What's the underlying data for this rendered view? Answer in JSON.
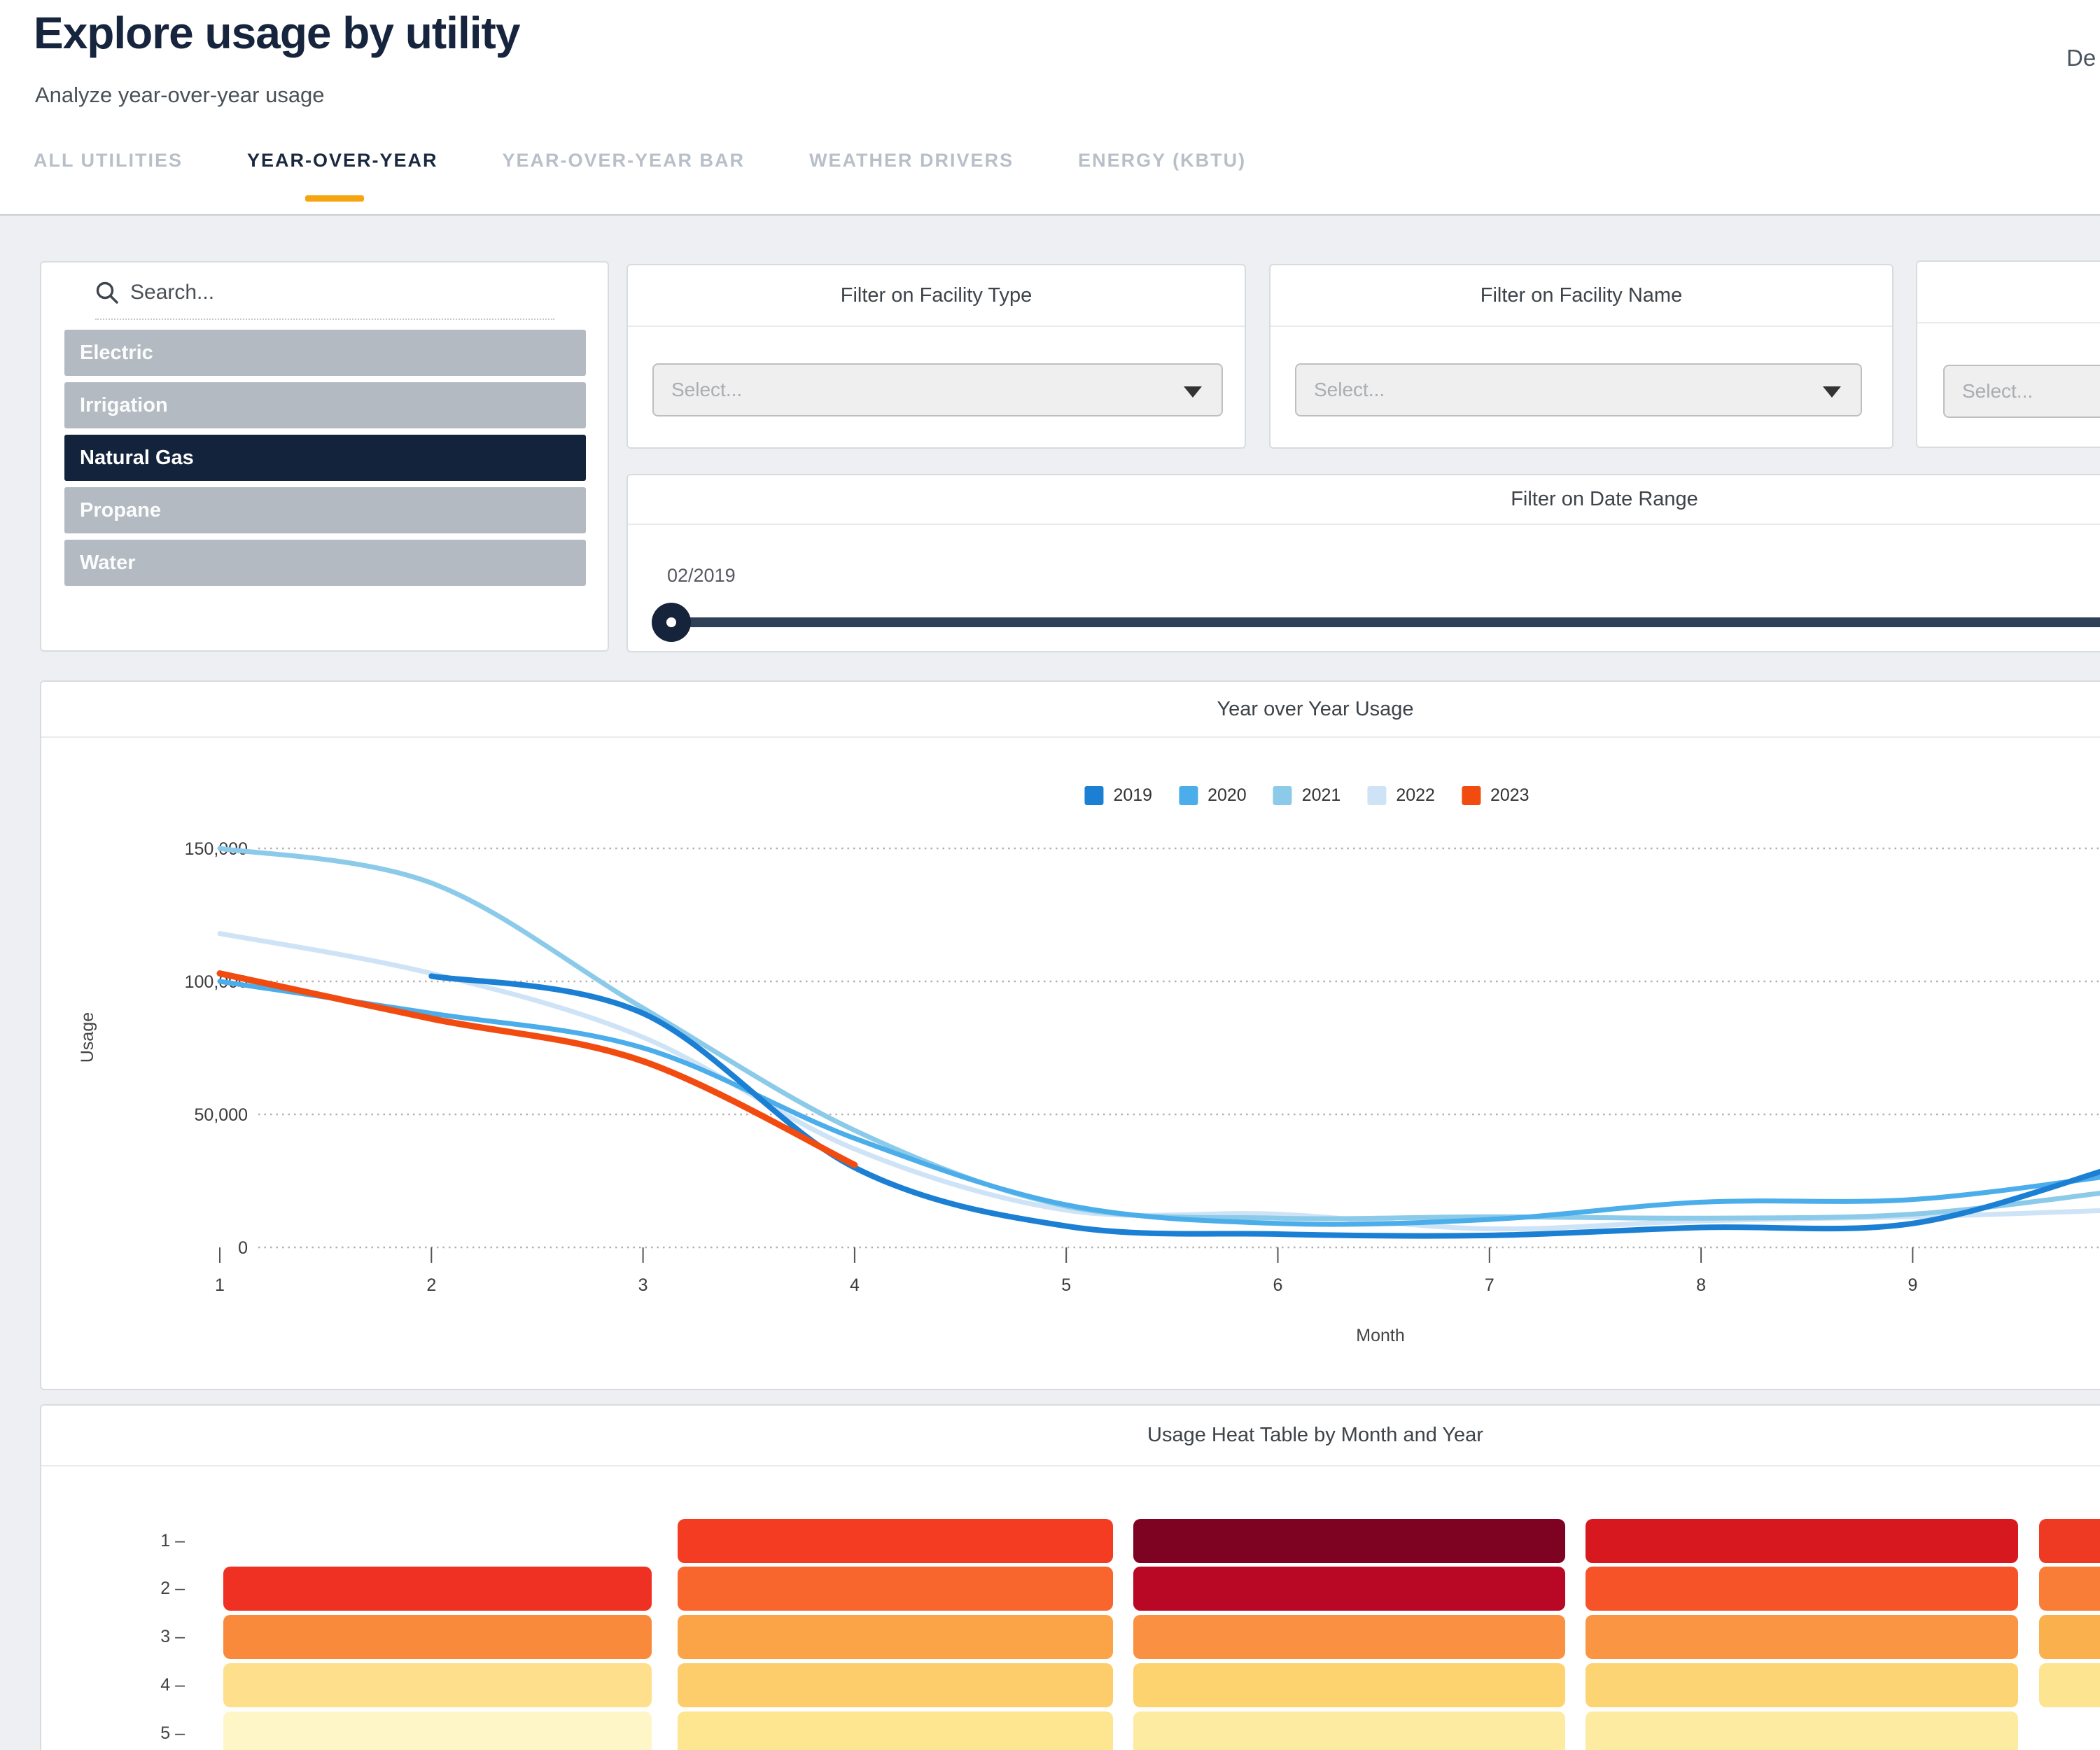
{
  "header": {
    "title": "Explore usage by utility",
    "subtitle": "Analyze year-over-year usage",
    "top_right_text": "De",
    "tabs": [
      {
        "label": "ALL UTILITIES",
        "active": false
      },
      {
        "label": "YEAR-OVER-YEAR",
        "active": true
      },
      {
        "label": "YEAR-OVER-YEAR BAR",
        "active": false
      },
      {
        "label": "WEATHER DRIVERS",
        "active": false
      },
      {
        "label": "ENERGY (KBTU)",
        "active": false
      }
    ]
  },
  "filters": {
    "search_placeholder": "Search...",
    "utilities": [
      {
        "label": "Electric",
        "selected": false
      },
      {
        "label": "Irrigation",
        "selected": false
      },
      {
        "label": "Natural Gas",
        "selected": true
      },
      {
        "label": "Propane",
        "selected": false
      },
      {
        "label": "Water",
        "selected": false
      }
    ],
    "facility_type": {
      "title": "Filter on Facility Type",
      "placeholder": "Select..."
    },
    "facility_name": {
      "title": "Filter on Facility Name",
      "placeholder": "Select..."
    },
    "third_filter": {
      "placeholder": "Select..."
    },
    "date_range": {
      "title": "Filter on Date Range",
      "start_label": "02/2019"
    }
  },
  "colors": {
    "accent_orange": "#f6a40f",
    "selected_navy": "#13233c",
    "utility_item_gray": "#b3bac2",
    "slider_track": "#2e4156",
    "slider_handle": "#15243b"
  },
  "chart_data": [
    {
      "type": "line",
      "title": "Year over Year Usage",
      "xlabel": "Month",
      "ylabel": "Usage",
      "x_ticks": [
        1,
        2,
        3,
        4,
        5,
        6,
        7,
        8,
        9
      ],
      "y_ticks": [
        0,
        50000,
        100000,
        150000
      ],
      "ylim": [
        0,
        155000
      ],
      "grid": "dotted-horizontal",
      "legend_position": "top-center",
      "series": [
        {
          "name": "2019",
          "color": "#1b7fd4",
          "points": [
            [
              2,
              102000
            ],
            [
              3,
              88000
            ],
            [
              4,
              30000
            ],
            [
              5,
              8000
            ],
            [
              6,
              5000
            ],
            [
              7,
              4500
            ],
            [
              8,
              7500
            ],
            [
              9,
              9000
            ],
            [
              9.95,
              30000
            ]
          ]
        },
        {
          "name": "2020",
          "color": "#4badea",
          "points": [
            [
              1,
              100000
            ],
            [
              2,
              88000
            ],
            [
              3,
              75000
            ],
            [
              4,
              41000
            ],
            [
              5,
              16000
            ],
            [
              6,
              9000
            ],
            [
              7,
              10500
            ],
            [
              8,
              17000
            ],
            [
              9,
              18000
            ],
            [
              9.95,
              27000
            ]
          ]
        },
        {
          "name": "2021",
          "color": "#8bcbe9",
          "points": [
            [
              1,
              150000
            ],
            [
              2,
              137000
            ],
            [
              3,
              90000
            ],
            [
              4,
              44000
            ],
            [
              5,
              15500
            ],
            [
              6,
              11000
            ],
            [
              7,
              11500
            ],
            [
              8,
              11000
            ],
            [
              9,
              12500
            ],
            [
              9.95,
              21000
            ]
          ]
        },
        {
          "name": "2022",
          "color": "#cfe3f7",
          "points": [
            [
              1,
              118000
            ],
            [
              2,
              103000
            ],
            [
              3,
              79000
            ],
            [
              4,
              37000
            ],
            [
              5,
              14000
            ],
            [
              6,
              12500
            ],
            [
              7,
              7000
            ],
            [
              8,
              10000
            ],
            [
              9,
              11500
            ],
            [
              9.95,
              14000
            ]
          ]
        },
        {
          "name": "2023",
          "color": "#f24b10",
          "points": [
            [
              1,
              103000
            ],
            [
              2,
              86000
            ],
            [
              3,
              70000
            ],
            [
              4,
              31000
            ]
          ]
        }
      ]
    },
    {
      "type": "heatmap",
      "title": "Usage Heat Table by Month and Year",
      "row_labels": [
        "1",
        "2",
        "3",
        "4",
        "5"
      ],
      "columns": 5,
      "cell_colors": [
        [
          null,
          "#f43c22",
          "#7e0323",
          "#d7191f",
          "#ef3a23"
        ],
        [
          "#ee3123",
          "#f8662e",
          "#b90726",
          "#f75329",
          "#f97d37"
        ],
        [
          "#f98a3c",
          "#fba447",
          "#fa9142",
          "#fa9544",
          "#fbb04e"
        ],
        [
          "#fedf8b",
          "#fdcd6c",
          "#fdd370",
          "#fdd473",
          "#fde491"
        ],
        [
          "#fff6c8",
          "#fee590",
          "#fdeba1",
          "#fdeba1",
          null
        ]
      ]
    }
  ]
}
